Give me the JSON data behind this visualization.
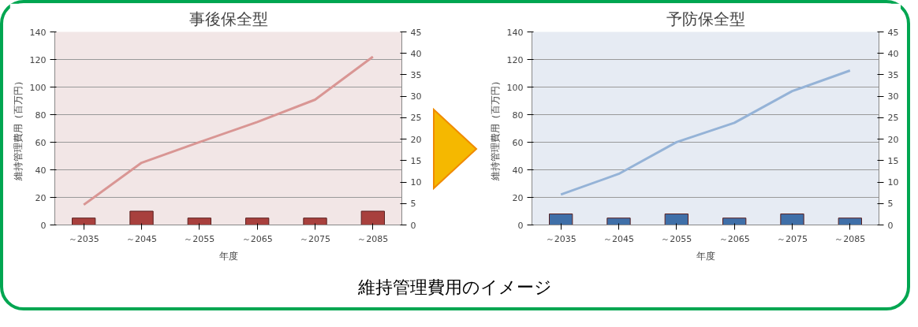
{
  "chart_data": [
    {
      "type": "bar",
      "title": "事後保全型",
      "xlabel": "年度",
      "ylabel": "維持管理費用（百万円）",
      "categories": [
        "～2035",
        "～2045",
        "～2055",
        "～2065",
        "～2075",
        "～2085"
      ],
      "ylim": [
        0,
        140
      ],
      "yticks": [
        0,
        20,
        40,
        60,
        80,
        100,
        120,
        140
      ],
      "y2lim": [
        0,
        45
      ],
      "y2ticks": [
        0,
        5,
        10,
        15,
        20,
        25,
        30,
        35,
        40,
        45
      ],
      "grid": "y",
      "marker": "none",
      "series": [
        {
          "type": "bar",
          "color": "#a8403d",
          "values": [
            5,
            10,
            5,
            5,
            5,
            10
          ]
        },
        {
          "type": "line",
          "axis": "y2",
          "color": "#d99694",
          "values": [
            4.7,
            14.5,
            19.3,
            24,
            29.2,
            39.2
          ]
        }
      ]
    },
    {
      "type": "bar",
      "title": "予防保全型",
      "xlabel": "年度",
      "ylabel": "維持管理費用（百万円）",
      "categories": [
        "～2035",
        "～2045",
        "～2055",
        "～2065",
        "～2075",
        "～2085"
      ],
      "ylim": [
        0,
        140
      ],
      "yticks": [
        0,
        20,
        40,
        60,
        80,
        100,
        120,
        140
      ],
      "y2lim": [
        0,
        45
      ],
      "y2ticks": [
        0,
        5,
        10,
        15,
        20,
        25,
        30,
        35,
        40,
        45
      ],
      "grid": "y",
      "marker": "none",
      "series": [
        {
          "type": "bar",
          "color": "#3f6fa8",
          "values": [
            8,
            5,
            8,
            5,
            8,
            5
          ]
        },
        {
          "type": "line",
          "axis": "y2",
          "color": "#95b3d7",
          "values": [
            7.1,
            11.9,
            19.3,
            23.8,
            31.2,
            36
          ]
        }
      ]
    },
    {
      "type": "other",
      "title": "維持管理費用のイメージ"
    }
  ]
}
